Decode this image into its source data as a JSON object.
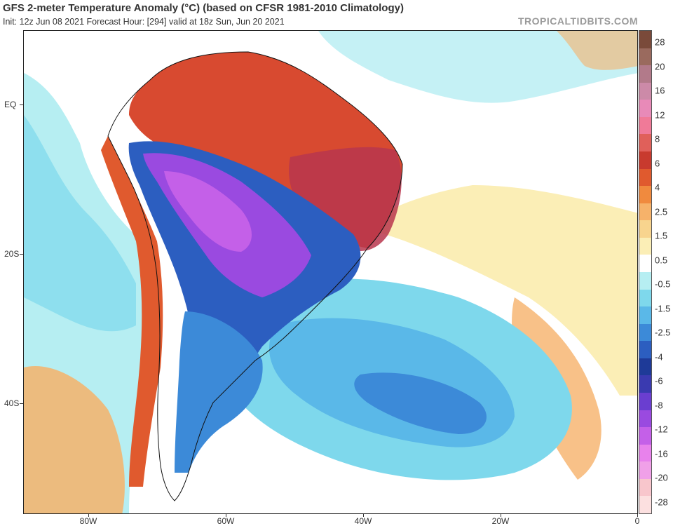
{
  "header": {
    "title": "GFS 2-meter Temperature Anomaly (°C) (based on CFSR 1981-2010 Climatology)",
    "subtitle": "Init: 12z Jun 08 2021   Forecast Hour: [294]   valid at 18z Sun, Jun 20 2021",
    "credit": "TROPICALTIDBITS.COM"
  },
  "axes": {
    "lat_labels": [
      "EQ",
      "20S",
      "40S"
    ],
    "lon_labels": [
      "80W",
      "60W",
      "40W",
      "20W",
      "0"
    ]
  },
  "colorbar": {
    "labels": [
      "28",
      "20",
      "16",
      "12",
      "8",
      "6",
      "4",
      "2.5",
      "1.5",
      "0.5",
      "-0.5",
      "-1.5",
      "-2.5",
      "-4",
      "-6",
      "-8",
      "-12",
      "-16",
      "-20",
      "-28"
    ],
    "colors": [
      "#7a4a3a",
      "#9a6a5e",
      "#b27a8a",
      "#cc8aa8",
      "#e88ab8",
      "#f07a98",
      "#e0605a",
      "#c83a2e",
      "#e05a2e",
      "#f08a3e",
      "#f6b26a",
      "#f8d48e",
      "#fbeeb6",
      "#ffffff",
      "#b6eef2",
      "#7ed8ec",
      "#5ab8e8",
      "#3c8ad8",
      "#2c5ec0",
      "#1e3a98",
      "#3a3ab0",
      "#6a3ed0",
      "#9a4ae0",
      "#c460e8",
      "#e882ec",
      "#f0a0e8",
      "#f8c6cc",
      "#fce0e0"
    ]
  },
  "colors": {
    "ocean_neutral": "#ffffff",
    "warm_anomaly": "#d84a30",
    "cold_anomaly": "#2c5ec0",
    "very_cold_anomaly": "#9a4ae0"
  }
}
